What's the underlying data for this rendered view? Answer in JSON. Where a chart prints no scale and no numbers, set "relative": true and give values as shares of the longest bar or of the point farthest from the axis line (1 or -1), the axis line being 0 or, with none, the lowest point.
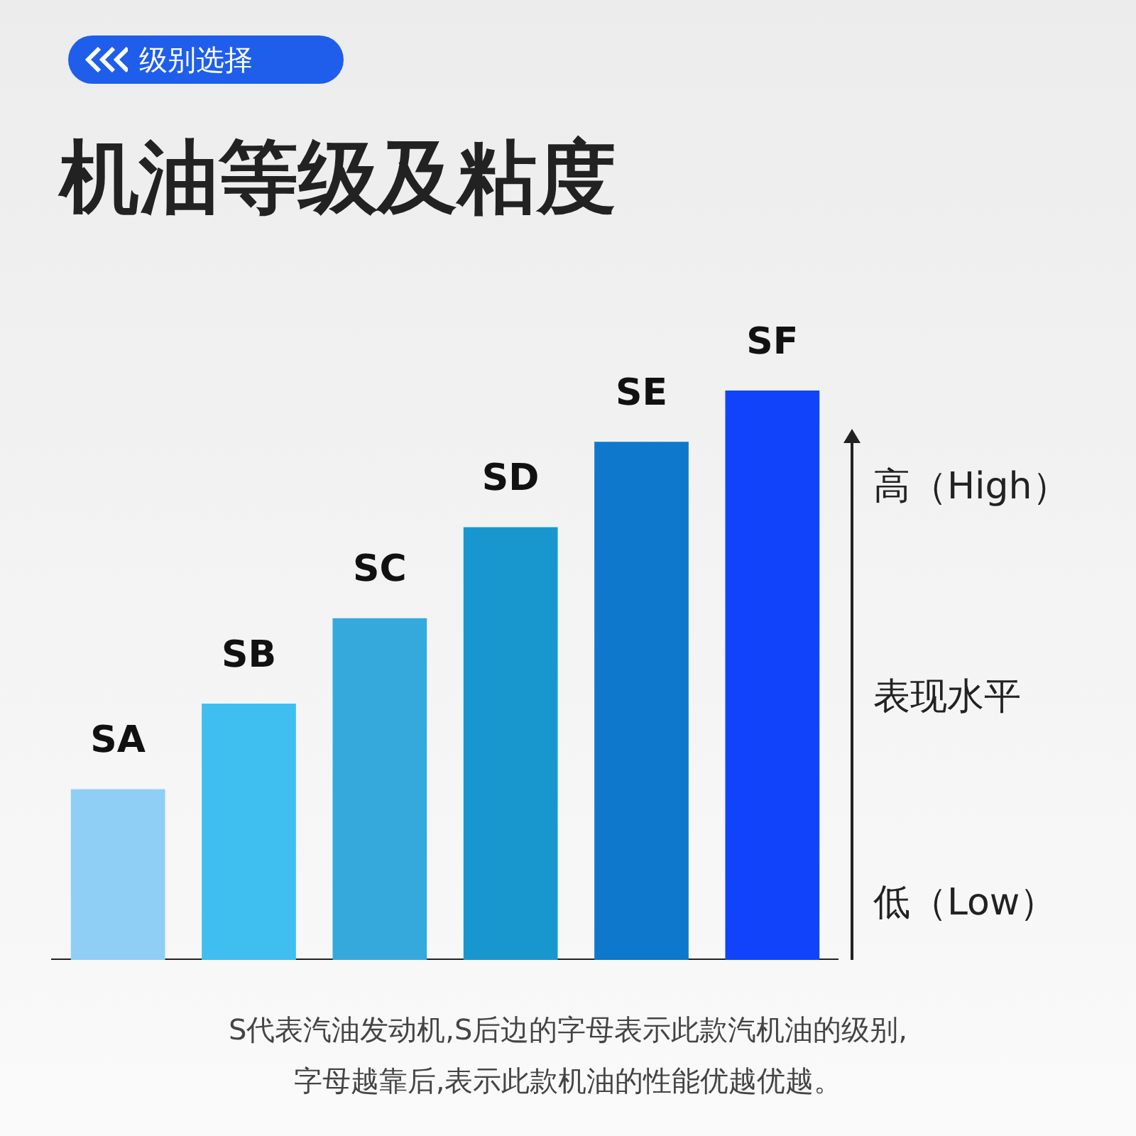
{
  "chart_data": {
    "type": "bar",
    "title": "机油等级及粘度",
    "subtitle": "级别选择",
    "ylabel": "表现水平",
    "relative": true,
    "categories": [
      "SA",
      "SB",
      "SC",
      "SD",
      "SE",
      "SF"
    ],
    "values": [
      0.3,
      0.45,
      0.6,
      0.76,
      0.91,
      1
    ],
    "colors": [
      "#90cff5",
      "#3fbff0",
      "#36a9dc",
      "#1897ce",
      "#0d78cc",
      "#1144fa"
    ],
    "grid": false,
    "legend": false,
    "annotations": [
      "高（High）",
      "低（Low）",
      "S代表汽油发动机,S后边的字母表示此款汽机油的级别,",
      "字母越靠后,表示此款机油的性能优越优越。"
    ]
  }
}
